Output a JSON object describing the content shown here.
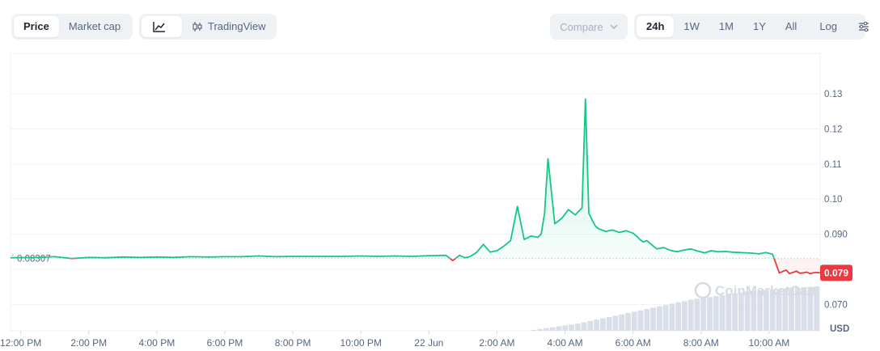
{
  "toolbar": {
    "metric_tabs": [
      "Price",
      "Market cap"
    ],
    "view_tabs": {
      "line_icon": "line-chart-icon",
      "tradingview_label": "TradingView",
      "tradingview_icon": "candlestick-icon"
    },
    "compare_label": "Compare",
    "range_tabs": [
      "24h",
      "1W",
      "1M",
      "1Y",
      "All"
    ],
    "active_range": "24h",
    "log_label": "Log",
    "settings_icon": "sliders-icon"
  },
  "watermark": "CoinMarketCap",
  "colors": {
    "up": "#16c784",
    "down": "#ea3943",
    "grid": "#eff2f5",
    "text": "#58667e",
    "volume": "#cfd6e4"
  },
  "chart_data": {
    "type": "line",
    "currency_label": "USD",
    "x_tick_labels": [
      "12:00 PM",
      "2:00 PM",
      "4:00 PM",
      "6:00 PM",
      "8:00 PM",
      "10:00 PM",
      "22 Jun",
      "2:00 AM",
      "4:00 AM",
      "6:00 AM",
      "8:00 AM",
      "10:00 AM"
    ],
    "y_ticks": [
      0.07,
      0.08,
      0.09,
      0.1,
      0.11,
      0.12,
      0.13
    ],
    "y_tick_labels": [
      "0.070",
      "",
      "0.090",
      "0.10",
      "0.11",
      "0.12",
      "0.13"
    ],
    "ylim": [
      0.0625,
      0.1415
    ],
    "x_hours_range": [
      -0.3,
      23.5
    ],
    "reference_price": 0.08307,
    "reference_label": "0.08307",
    "last_price": 0.079,
    "last_price_label": "0.079",
    "grid": true,
    "series": [
      {
        "x": [
          -0.3,
          0.5,
          1.0,
          1.5,
          2.0,
          2.5,
          3.0,
          3.5,
          4.0,
          4.5,
          5.0,
          5.5,
          6.0,
          6.5,
          7.0,
          7.5,
          8.0,
          8.5,
          9.0,
          9.5,
          10.0,
          10.5,
          11.0,
          11.5,
          12.0,
          12.5,
          12.7,
          12.9,
          13.05,
          13.2,
          13.4,
          13.6,
          13.8,
          14.0,
          14.2,
          14.4,
          14.6,
          14.8,
          15.0,
          15.2,
          15.3,
          15.4,
          15.5,
          15.7,
          15.9,
          16.1,
          16.3,
          16.5,
          16.6,
          16.7,
          16.8,
          16.9,
          17.0,
          17.2,
          17.4,
          17.6,
          17.8,
          18.0,
          18.1,
          18.2,
          18.3,
          18.4,
          18.5,
          18.7,
          18.9,
          19.1,
          19.3,
          19.5,
          19.7,
          19.9,
          20.1,
          20.3,
          20.5,
          20.7,
          20.9,
          21.1,
          21.3,
          21.5,
          21.7,
          21.9,
          22.1,
          22.3,
          22.5,
          22.6,
          22.7,
          22.8,
          22.9,
          23.0,
          23.1,
          23.2,
          23.3,
          23.4,
          23.5
        ],
        "y": [
          0.0833,
          0.0834,
          0.0836,
          0.0831,
          0.0834,
          0.0833,
          0.0835,
          0.0834,
          0.0835,
          0.0834,
          0.0836,
          0.0835,
          0.0836,
          0.0836,
          0.0838,
          0.0836,
          0.0837,
          0.0837,
          0.0837,
          0.0837,
          0.0838,
          0.0837,
          0.0838,
          0.0837,
          0.0839,
          0.084,
          0.0825,
          0.084,
          0.0833,
          0.0836,
          0.0848,
          0.0871,
          0.0849,
          0.0853,
          0.0866,
          0.0882,
          0.0979,
          0.0885,
          0.0895,
          0.0891,
          0.0901,
          0.096,
          0.1115,
          0.093,
          0.0945,
          0.097,
          0.0955,
          0.0975,
          0.1285,
          0.096,
          0.094,
          0.0922,
          0.0915,
          0.0908,
          0.0912,
          0.0905,
          0.091,
          0.0903,
          0.0895,
          0.0885,
          0.0878,
          0.0882,
          0.0874,
          0.0858,
          0.0862,
          0.0854,
          0.085,
          0.0855,
          0.0858,
          0.0852,
          0.0847,
          0.0853,
          0.085,
          0.0851,
          0.0849,
          0.0848,
          0.0847,
          0.0846,
          0.0844,
          0.0848,
          0.0843,
          0.079,
          0.0798,
          0.0788,
          0.0791,
          0.0795,
          0.0789,
          0.079,
          0.0792,
          0.0788,
          0.079,
          0.0791,
          0.079
        ]
      }
    ],
    "volume": {
      "x_start": 15.0,
      "x_end": 23.5,
      "values": [
        0.02,
        0.04,
        0.06,
        0.08,
        0.1,
        0.12,
        0.14,
        0.16,
        0.19,
        0.22,
        0.25,
        0.28,
        0.31,
        0.34,
        0.37,
        0.4,
        0.43,
        0.46,
        0.49,
        0.52,
        0.55,
        0.58,
        0.61,
        0.64,
        0.67,
        0.7,
        0.72,
        0.74,
        0.76,
        0.78,
        0.8,
        0.82,
        0.84,
        0.86,
        0.88,
        0.9,
        0.91,
        0.92,
        0.93,
        0.94,
        0.95,
        0.96,
        0.97,
        0.98,
        0.99,
        1.0
      ]
    }
  }
}
